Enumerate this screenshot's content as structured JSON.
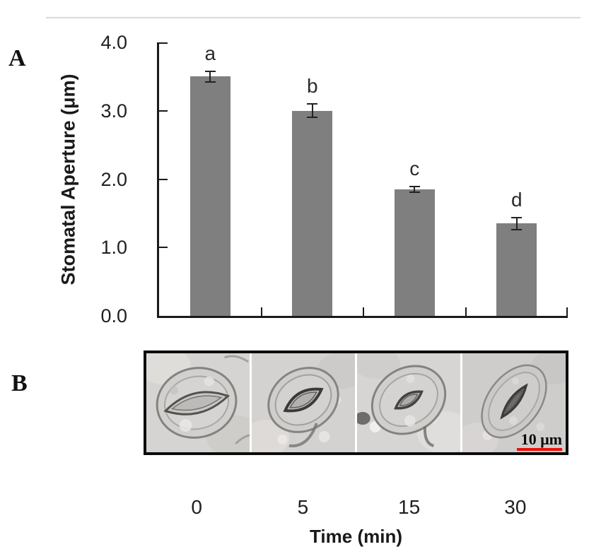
{
  "figure": {
    "panel_a_label": "A",
    "panel_b_label": "B"
  },
  "chart_data": {
    "type": "bar",
    "title": "",
    "ylabel": "Stomatal Aperture (μm)",
    "xlabel": "Time (min)",
    "categories": [
      "0",
      "5",
      "15",
      "30"
    ],
    "values": [
      3.5,
      3.0,
      1.85,
      1.35
    ],
    "errors": [
      0.09,
      0.11,
      0.05,
      0.1
    ],
    "sig_letters": [
      "a",
      "b",
      "c",
      "d"
    ],
    "ylim": [
      0,
      4.0
    ],
    "yticks": [
      "4.0",
      "3.0",
      "2.0",
      "1.0",
      "0.0"
    ],
    "grid": false,
    "legend": null,
    "bar_color": "#7f7f7f",
    "axis_color": "#1a1a1a"
  },
  "panel_b": {
    "description": "stomata micrographs at 0, 5, 15 and 30 min",
    "micrograph_count": 4,
    "scale_bar_label": "10 μm",
    "scale_bar_color": "#ee1208"
  }
}
